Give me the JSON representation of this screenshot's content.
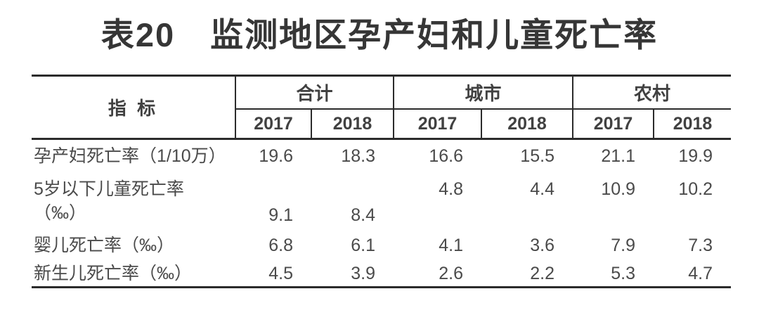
{
  "title": {
    "number": "表20",
    "text": "监测地区孕产妇和儿童死亡率"
  },
  "table": {
    "indicator_header": "指 标",
    "groups": [
      {
        "label": "合计",
        "years": [
          "2017",
          "2018"
        ]
      },
      {
        "label": "城市",
        "years": [
          "2017",
          "2018"
        ]
      },
      {
        "label": "农村",
        "years": [
          "2017",
          "2018"
        ]
      }
    ],
    "rows": [
      {
        "label_lines": [
          "孕产妇死亡率（1/10万）",
          ""
        ],
        "values": [
          "19.6",
          "18.3",
          "16.6",
          "15.5",
          "21.1",
          "19.9"
        ]
      },
      {
        "label_lines": [
          "5岁以下儿童死亡率",
          "（‰）"
        ],
        "values": [
          "9.1",
          "8.4",
          "4.8",
          "4.4",
          "10.9",
          "10.2"
        ]
      },
      {
        "label_lines": [
          "婴儿死亡率（‰）",
          ""
        ],
        "values": [
          "6.8",
          "6.1",
          "4.1",
          "3.6",
          "7.9",
          "7.3"
        ]
      },
      {
        "label_lines": [
          "新生儿死亡率（‰）",
          ""
        ],
        "values": [
          "4.5",
          "3.9",
          "2.6",
          "2.2",
          "5.3",
          "4.7"
        ]
      }
    ]
  },
  "colors": {
    "text": "#4a4a4a",
    "header_text": "#414141",
    "title_text": "#363636",
    "rule": "#2b2b2b",
    "background": "#ffffff"
  },
  "chart_data": {
    "type": "table",
    "title": "表20 监测地区孕产妇和儿童死亡率",
    "column_groups": [
      "合计",
      "城市",
      "农村"
    ],
    "columns": [
      "指标",
      "合计 2017",
      "合计 2018",
      "城市 2017",
      "城市 2018",
      "农村 2017",
      "农村 2018"
    ],
    "rows": [
      [
        "孕产妇死亡率（1/10万）",
        19.6,
        18.3,
        16.6,
        15.5,
        21.1,
        19.9
      ],
      [
        "5岁以下儿童死亡率（‰）",
        9.1,
        8.4,
        4.8,
        4.4,
        10.9,
        10.2
      ],
      [
        "婴儿死亡率（‰）",
        6.8,
        6.1,
        4.1,
        3.6,
        7.9,
        7.3
      ],
      [
        "新生儿死亡率（‰）",
        4.5,
        3.9,
        2.6,
        2.2,
        5.3,
        4.7
      ]
    ]
  }
}
